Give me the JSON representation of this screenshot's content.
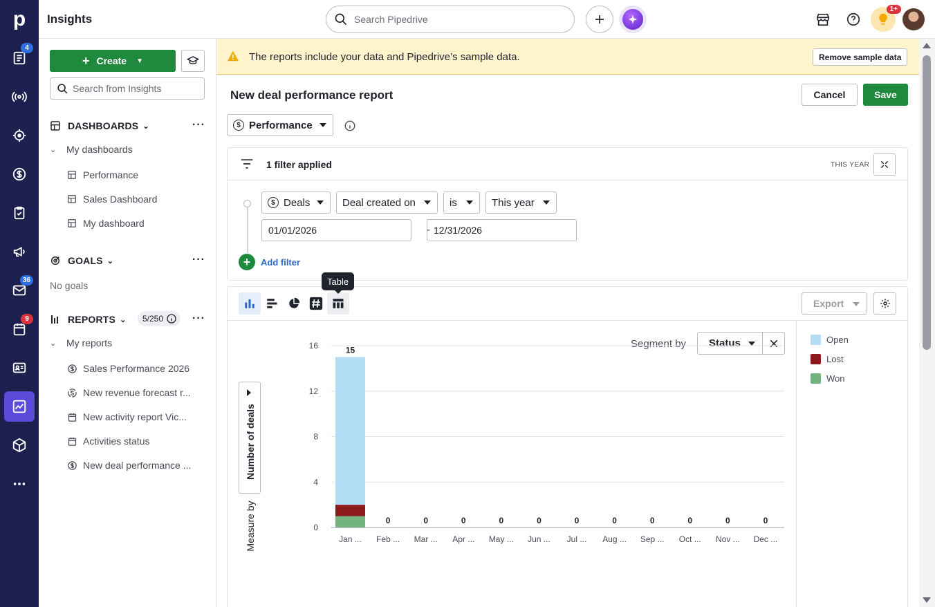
{
  "app": {
    "title": "Insights",
    "brand_letter": "p"
  },
  "topbar": {
    "search_placeholder": "Search Pipedrive",
    "notification_badge": "1+"
  },
  "rail": {
    "badges": {
      "leads": "4",
      "mail": "36",
      "activities": "9"
    }
  },
  "sidebar": {
    "create_label": "Create",
    "search_placeholder": "Search from Insights",
    "dashboards": {
      "heading": "DASHBOARDS",
      "group": "My dashboards",
      "items": [
        "Performance",
        "Sales Dashboard",
        "My dashboard"
      ]
    },
    "goals": {
      "heading": "GOALS",
      "empty": "No goals"
    },
    "reports": {
      "heading": "REPORTS",
      "count": "5/250",
      "group": "My reports",
      "items": [
        {
          "label": "Sales Performance 2026",
          "icon": "dollar-icon"
        },
        {
          "label": "New revenue forecast r...",
          "icon": "forecast-icon"
        },
        {
          "label": "New activity report Vic...",
          "icon": "calendar-icon"
        },
        {
          "label": "Activities status",
          "icon": "calendar-icon"
        },
        {
          "label": "New deal performance ...",
          "icon": "dollar-icon"
        }
      ]
    }
  },
  "banner": {
    "text": "The reports include your data and Pipedrive’s sample data.",
    "button": "Remove sample data"
  },
  "report": {
    "title": "New deal performance report",
    "cancel": "Cancel",
    "save": "Save",
    "type": "Performance"
  },
  "filters": {
    "summary": "1 filter applied",
    "period_tag": "THIS YEAR",
    "entity": "Deals",
    "field": "Deal created on",
    "operator": "is",
    "value": "This year",
    "date_from": "01/01/2026",
    "date_to": "12/31/2026",
    "add_label": "Add filter"
  },
  "chart_toolbar": {
    "tooltip": "Table",
    "export": "Export"
  },
  "segment": {
    "label": "Segment by",
    "value": "Status"
  },
  "measure": {
    "label": "Number of deals",
    "by_label": "Measure by"
  },
  "colors": {
    "open": "#b3dcf5",
    "lost": "#8c1a1a",
    "won": "#73b37d",
    "brand_green": "#1f8a3d",
    "rail": "#1d1f4f"
  },
  "chart_data": {
    "type": "bar",
    "stacked": true,
    "categories": [
      "Jan ...",
      "Feb ...",
      "Mar ...",
      "Apr ...",
      "May ...",
      "Jun ...",
      "Jul ...",
      "Aug ...",
      "Sep ...",
      "Oct ...",
      "Nov ...",
      "Dec ..."
    ],
    "series": [
      {
        "name": "Won",
        "values": [
          1,
          0,
          0,
          0,
          0,
          0,
          0,
          0,
          0,
          0,
          0,
          0
        ]
      },
      {
        "name": "Lost",
        "values": [
          1,
          0,
          0,
          0,
          0,
          0,
          0,
          0,
          0,
          0,
          0,
          0
        ]
      },
      {
        "name": "Open",
        "values": [
          13,
          0,
          0,
          0,
          0,
          0,
          0,
          0,
          0,
          0,
          0,
          0
        ]
      }
    ],
    "totals": [
      15,
      0,
      0,
      0,
      0,
      0,
      0,
      0,
      0,
      0,
      0,
      0
    ],
    "ylim": [
      0,
      16
    ],
    "yticks": [
      0,
      4,
      8,
      12,
      16
    ],
    "legend": [
      "Open",
      "Lost",
      "Won"
    ],
    "legend_position": "right",
    "grid": true
  }
}
